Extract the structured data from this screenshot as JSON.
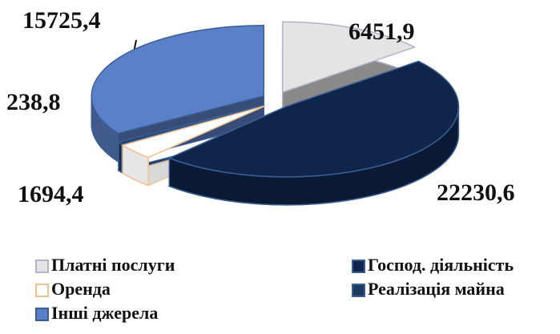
{
  "chart_data": {
    "type": "pie3d",
    "categories": [
      "Платні послуги",
      "Господ. діяльність",
      "Оренда",
      "Реалізація майна",
      "Інші джерела"
    ],
    "values": [
      6451.9,
      22230.6,
      1694.4,
      238.8,
      15725.4
    ],
    "value_labels": [
      "6451,9",
      "22230,6",
      "1694,4",
      "238,8",
      "15725,4"
    ],
    "colors": [
      "#e4e4e4",
      "#10254a",
      "#ffffff",
      "#1e3a5f",
      "#5b80c8"
    ],
    "legend": "bottom"
  }
}
